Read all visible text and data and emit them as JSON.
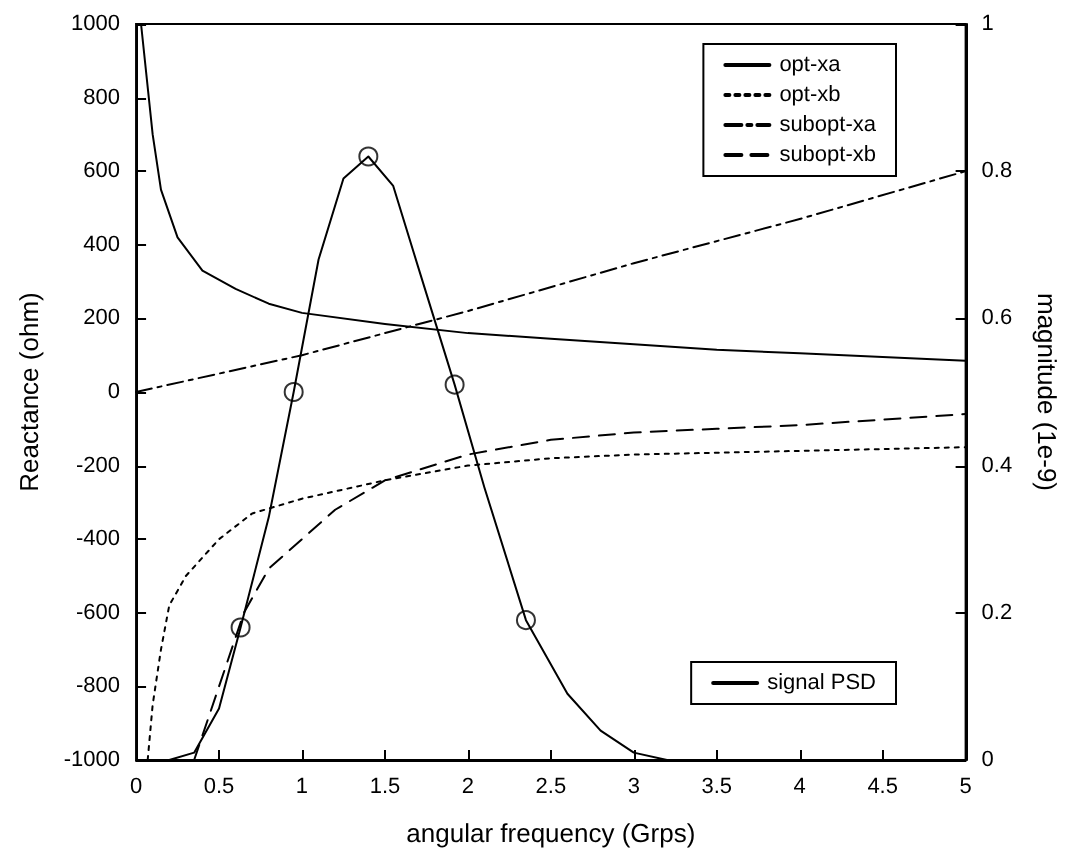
{
  "chart_data": {
    "type": "line",
    "xlabel": "angular frequency (Grps)",
    "ylabel": "Reactance (ohm)",
    "y2label": "magnitude (1e-9)",
    "xlim": [
      0,
      5
    ],
    "xticks": [
      0,
      0.5,
      1,
      1.5,
      2,
      2.5,
      3,
      3.5,
      4,
      4.5,
      5
    ],
    "ylim": [
      -1000,
      1000
    ],
    "yticks": [
      -1000,
      -800,
      -600,
      -400,
      -200,
      0,
      200,
      400,
      600,
      800,
      1000
    ],
    "y2lim": [
      0,
      1
    ],
    "y2ticks": [
      0,
      0.2,
      0.4,
      0.6,
      0.8,
      1
    ],
    "grid": false,
    "legend": "top right",
    "series": [
      {
        "name": "opt-xa",
        "color": "#000000",
        "line_style": "solid",
        "x": [
          0.03,
          0.1,
          0.15,
          0.25,
          0.4,
          0.6,
          0.8,
          1.0,
          1.5,
          2.0,
          2.5,
          3.0,
          3.5,
          4.0,
          4.5,
          5.0
        ],
        "values": [
          1000,
          700,
          550,
          420,
          330,
          280,
          240,
          215,
          185,
          160,
          145,
          130,
          115,
          105,
          95,
          85
        ]
      },
      {
        "name": "opt-xb",
        "color": "#000000",
        "line_style": "dotted",
        "x": [
          0.07,
          0.1,
          0.15,
          0.2,
          0.3,
          0.5,
          0.7,
          1.0,
          1.5,
          2.0,
          2.5,
          3.0,
          3.5,
          4.0,
          5.0
        ],
        "values": [
          -1000,
          -850,
          -700,
          -580,
          -500,
          -400,
          -330,
          -290,
          -240,
          -200,
          -180,
          -170,
          -165,
          -160,
          -150
        ]
      },
      {
        "name": "subopt-xa",
        "color": "#000000",
        "line_style": "dashdot",
        "x": [
          0,
          1,
          2,
          3,
          4,
          5
        ],
        "values": [
          0,
          100,
          220,
          350,
          470,
          600
        ]
      },
      {
        "name": "subopt-xb",
        "color": "#000000",
        "line_style": "dashed",
        "x": [
          0.35,
          0.5,
          0.65,
          0.8,
          1.0,
          1.2,
          1.5,
          2.0,
          2.5,
          3.0,
          3.5,
          4.0,
          4.5,
          5.0
        ],
        "values": [
          -1000,
          -800,
          -600,
          -480,
          -400,
          -320,
          -240,
          -170,
          -130,
          -110,
          -100,
          -90,
          -75,
          -60
        ]
      },
      {
        "name": "signal PSD",
        "color": "#000000",
        "line_style": "solid",
        "axis": "y2",
        "x": [
          0.2,
          0.35,
          0.5,
          0.63,
          0.8,
          0.95,
          1.1,
          1.25,
          1.4,
          1.55,
          1.7,
          1.92,
          2.1,
          2.35,
          2.6,
          2.8,
          3.0,
          3.2,
          3.5
        ],
        "values": [
          0,
          0.01,
          0.07,
          0.18,
          0.33,
          0.5,
          0.68,
          0.79,
          0.82,
          0.78,
          0.67,
          0.51,
          0.37,
          0.19,
          0.09,
          0.04,
          0.01,
          0,
          0
        ]
      },
      {
        "type": "scatter",
        "color": "#000000",
        "axis": "y2",
        "marker": "circle",
        "x": [
          0.63,
          0.95,
          1.4,
          1.92,
          2.35
        ],
        "values": [
          0.18,
          0.5,
          0.82,
          0.51,
          0.19
        ]
      }
    ]
  }
}
